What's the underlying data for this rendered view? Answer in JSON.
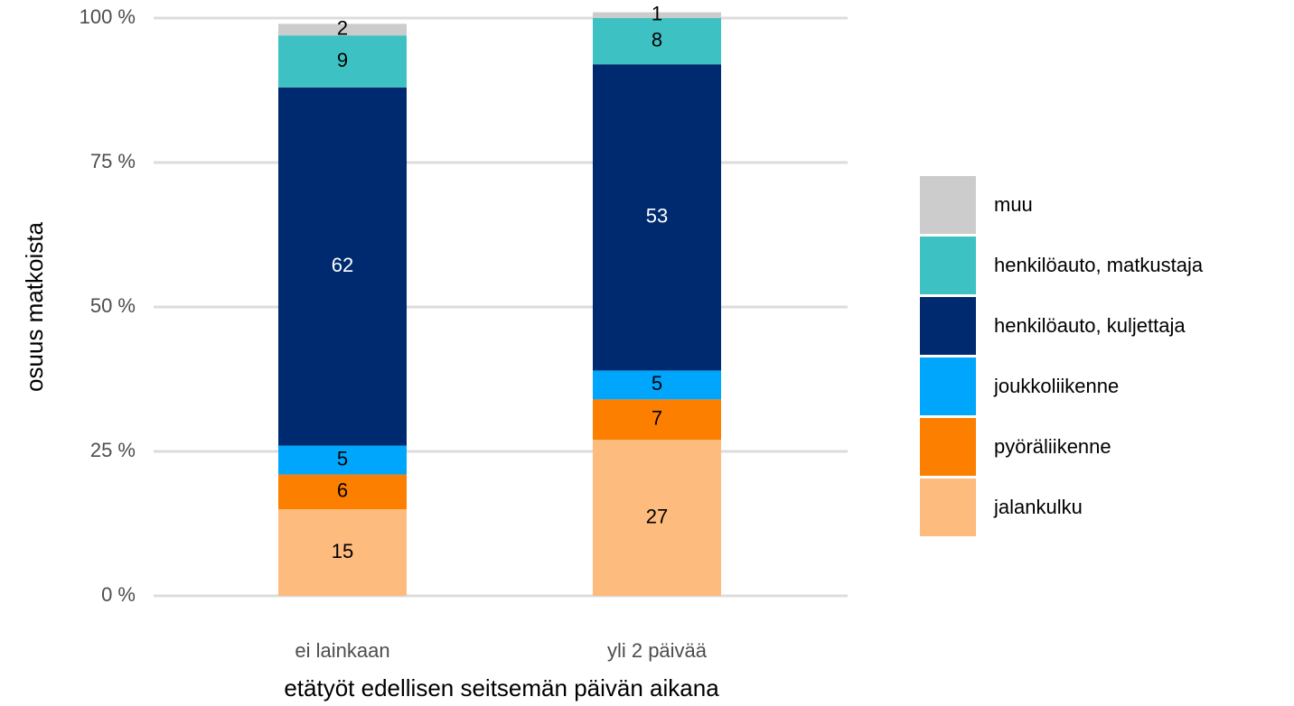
{
  "chart_data": {
    "type": "stacked_bar",
    "categories": [
      "ei lainkaan",
      "yli 2 päivää"
    ],
    "x_label": "etätyöt edellisen seitsemän päivän aikana",
    "y_label": "osuus matkoista",
    "series": [
      {
        "name": "jalankulku",
        "color": "#fdbb7e",
        "values": [
          15,
          27
        ]
      },
      {
        "name": "pyöräliikenne",
        "color": "#fc7f00",
        "values": [
          6,
          7
        ]
      },
      {
        "name": "joukkoliikenne",
        "color": "#00a5fc",
        "values": [
          5,
          5
        ]
      },
      {
        "name": "henkilöauto, kuljettaja",
        "color": "#002a70",
        "values": [
          62,
          53
        ]
      },
      {
        "name": "henkilöauto, matkustaja",
        "color": "#3ec1c2",
        "values": [
          9,
          8
        ]
      },
      {
        "name": "muu",
        "color": "#cccccc",
        "values": [
          2,
          1
        ]
      }
    ],
    "ylim": [
      0,
      100
    ],
    "yticks": [
      {
        "value": 0,
        "label": "0 %"
      },
      {
        "value": 25,
        "label": "25 %"
      },
      {
        "value": 50,
        "label": "50 %"
      },
      {
        "value": 75,
        "label": "75 %"
      },
      {
        "value": 100,
        "label": "100 %"
      }
    ],
    "grid": true,
    "legend": "right"
  }
}
